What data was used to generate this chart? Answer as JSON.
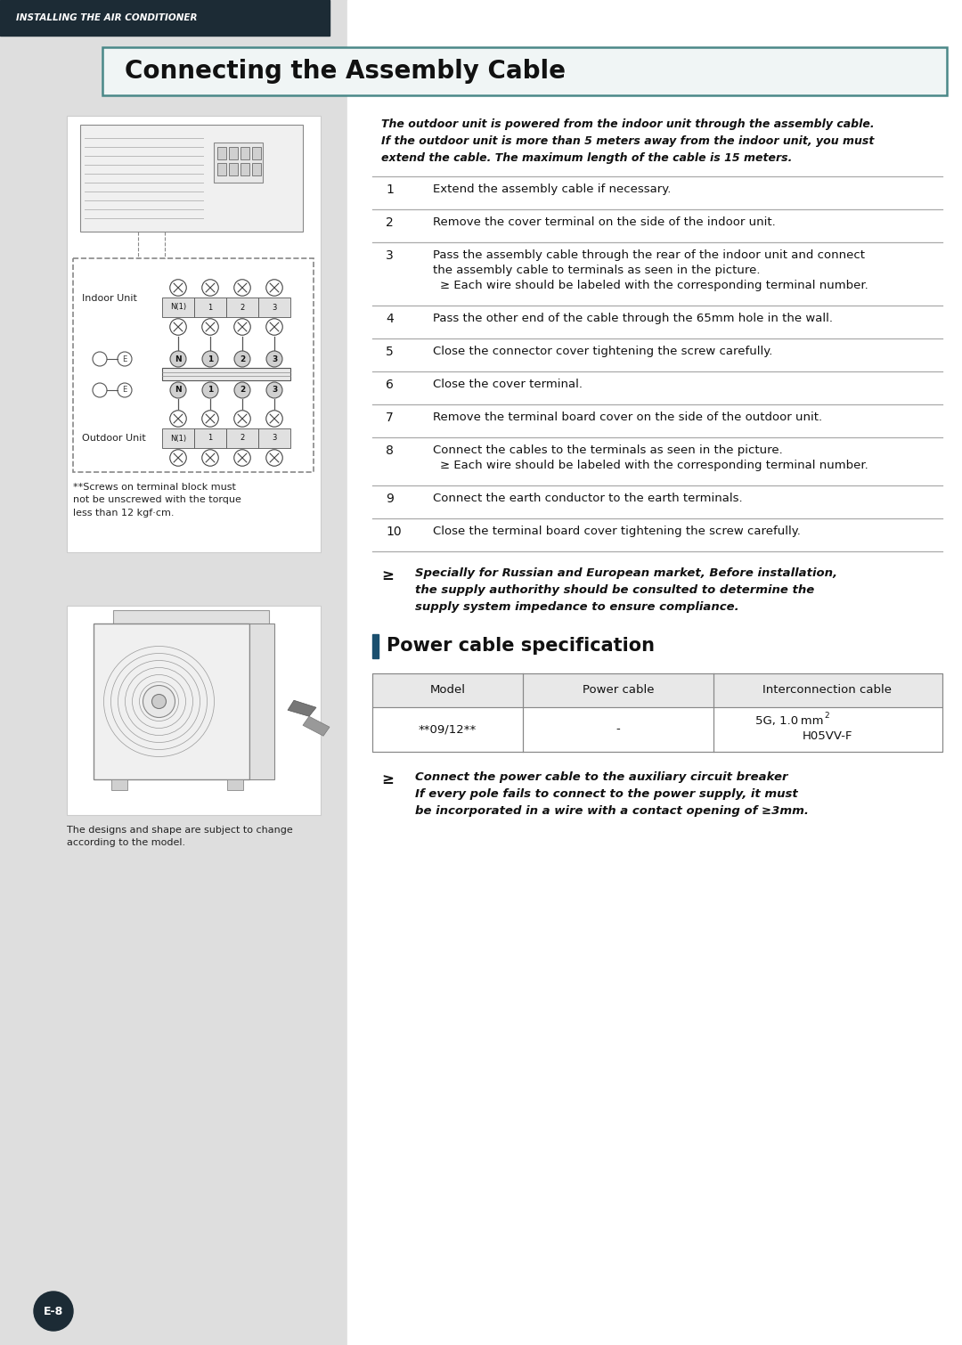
{
  "header_bg": "#1c2b35",
  "header_text": "INSTALLING THE AIR CONDITIONER",
  "left_panel_bg": "#dedede",
  "title_box_border": "#5a8a8a",
  "title_box_bg": "#f0f5f5",
  "title_text": "Connecting the Assembly Cable",
  "intro_line1": "The outdoor unit is powered from the indoor unit through the assembly cable.",
  "intro_line2": "If the outdoor unit is more than 5 meters away from the indoor unit, you must",
  "intro_line3": "extend the cable. The maximum length of the cable is 15 meters.",
  "steps": [
    {
      "num": "1",
      "lines": [
        "Extend the assembly cable if necessary."
      ],
      "sub": null
    },
    {
      "num": "2",
      "lines": [
        "Remove the cover terminal on the side of the indoor unit."
      ],
      "sub": null
    },
    {
      "num": "3",
      "lines": [
        "Pass the assembly cable through the rear of the indoor unit and connect",
        "the assembly cable to terminals as seen in the picture."
      ],
      "sub": "≥ Each wire should be labeled with the corresponding terminal number."
    },
    {
      "num": "4",
      "lines": [
        "Pass the other end of the cable through the 65mm hole in the wall."
      ],
      "sub": null
    },
    {
      "num": "5",
      "lines": [
        "Close the connector cover tightening the screw carefully."
      ],
      "sub": null
    },
    {
      "num": "6",
      "lines": [
        "Close the cover terminal."
      ],
      "sub": null
    },
    {
      "num": "7",
      "lines": [
        "Remove the terminal board cover on the side of the outdoor unit."
      ],
      "sub": null
    },
    {
      "num": "8",
      "lines": [
        "Connect the cables to the terminals as seen in the picture."
      ],
      "sub": "≥ Each wire should be labeled with the corresponding terminal number."
    },
    {
      "num": "9",
      "lines": [
        "Connect the earth conductor to the earth terminals."
      ],
      "sub": null
    },
    {
      "num": "10",
      "lines": [
        "Close the terminal board cover tightening the screw carefully."
      ],
      "sub": null
    }
  ],
  "note1_symbol": "≥",
  "note1_lines": [
    "Specially for Russian and European market, Before installation,",
    "the supply authorithy should be consulted to determine the",
    "supply system impedance to ensure compliance."
  ],
  "section_title": "Power cable specification",
  "table_headers": [
    "Model",
    "Power cable",
    "Interconnection cable"
  ],
  "table_model": "**09/12**",
  "table_power": "-",
  "table_inter_line1": "5G, 1.0 mm",
  "table_inter_line2": "H05VV-F",
  "footer_symbol": "≥",
  "footer_lines": [
    "Connect the power cable to the auxiliary circuit breaker",
    "If every pole fails to connect to the power supply, it must",
    "be incorporated in a wire with a contact opening of ≥3mm."
  ],
  "page_label": "E-8",
  "line_color": "#aaaaaa",
  "dark_color": "#1c2b35",
  "diag_bg": "#ffffff",
  "photo_bg": "#f8f8f8"
}
